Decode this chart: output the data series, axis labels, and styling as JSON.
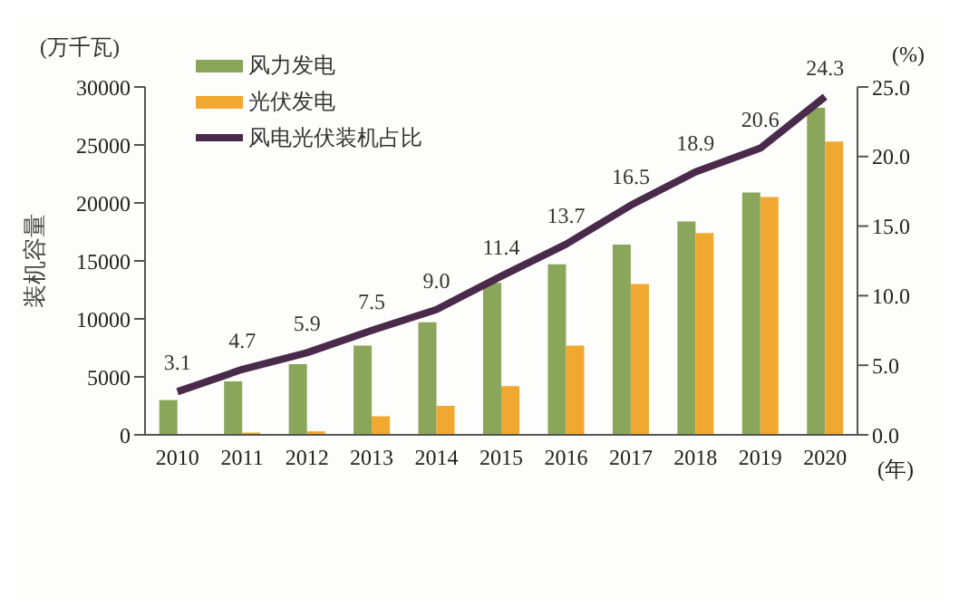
{
  "chart_data": {
    "type": "bar",
    "categories": [
      "2010",
      "2011",
      "2012",
      "2013",
      "2014",
      "2015",
      "2016",
      "2017",
      "2018",
      "2019",
      "2020"
    ],
    "xlabel": "(年)",
    "ylabel": "装机容量",
    "y2label": "(%)",
    "annotations": [
      "(万千瓦)"
    ],
    "series": [
      {
        "name": "风力发电",
        "color": "#8aa65a",
        "values": [
          3000,
          4600,
          6100,
          7700,
          9700,
          13100,
          14700,
          16400,
          18400,
          20900,
          28200
        ]
      },
      {
        "name": "光伏发电",
        "color": "#f0a830",
        "values": [
          0,
          200,
          300,
          1600,
          2500,
          4200,
          7700,
          13000,
          17400,
          20500,
          25300
        ]
      },
      {
        "name": "风电光伏装机占比",
        "type": "line",
        "axis": "y2",
        "color": "#4a2a4a",
        "values": [
          3.1,
          4.7,
          5.9,
          7.5,
          9.0,
          11.4,
          13.7,
          16.5,
          18.9,
          20.6,
          24.3
        ],
        "value_labels": [
          "3.1",
          "4.7",
          "5.9",
          "7.5",
          "9.0",
          "11.4",
          "13.7",
          "16.5",
          "18.9",
          "20.6",
          "24.3"
        ]
      }
    ],
    "ylim": [
      0,
      30000
    ],
    "yticks": [
      0,
      5000,
      10000,
      15000,
      20000,
      25000,
      30000
    ],
    "y2lim": [
      0,
      25
    ],
    "y2ticks": [
      {
        "value": 0,
        "label": "0.0"
      },
      {
        "value": 5,
        "label": "5.0"
      },
      {
        "value": 10,
        "label": "10.0"
      },
      {
        "value": 15,
        "label": "15.0"
      },
      {
        "value": 20,
        "label": "20.0"
      },
      {
        "value": 25,
        "label": "25.0"
      }
    ],
    "legend": "top left",
    "marker": "none"
  }
}
